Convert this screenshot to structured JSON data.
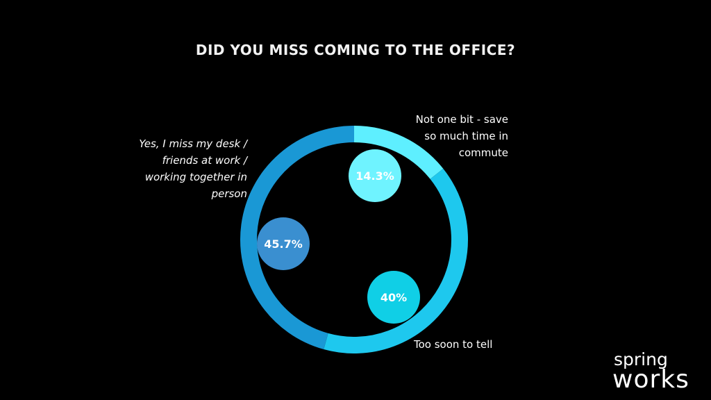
{
  "chart_data": {
    "type": "donut",
    "title": "DID YOU MISS COMING TO THE OFFICE?",
    "categories": [
      "Not one bit - save so much time in commute",
      "Too soon to tell",
      "Yes, I miss my desk / friends at work / working together in person"
    ],
    "values": [
      14.3,
      40,
      45.7
    ],
    "value_labels": [
      "14.3%",
      "40%",
      "45.7%"
    ],
    "colors": [
      "#5eefff",
      "#1ec8ee",
      "#1a98d5"
    ],
    "bubble_colors": [
      "#6ff3ff",
      "#10cfe6",
      "#3a8fd0"
    ]
  },
  "logo": {
    "top": "spring",
    "bottom": "works"
  }
}
